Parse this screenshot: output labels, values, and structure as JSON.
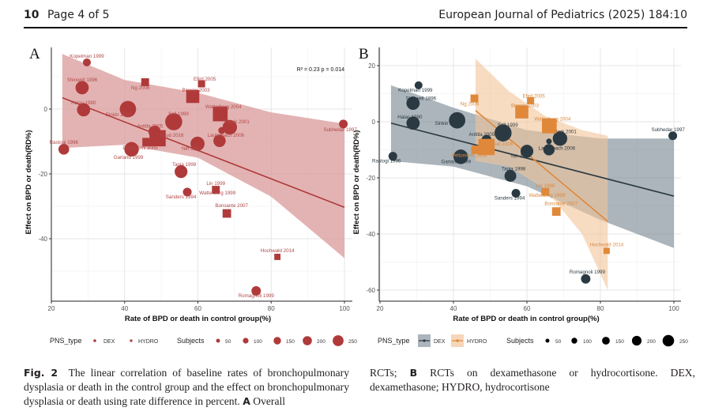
{
  "header": {
    "page_number": "10",
    "page_text": "Page 4 of 5",
    "journal": "European Journal of Pediatrics (2025) 184:10"
  },
  "caption": {
    "fig_label": "Fig. 2",
    "left_text": "The linear correlation of baseline rates of bronchopulmonary dysplasia or death in the control group and the effect on bronchopulmonary dysplasia or death using rate difference in percent.",
    "left_bold_tail": "A",
    "left_tail": "Overall",
    "right_start": "RCTs;",
    "right_bold": "B",
    "right_text": "RCTs on dexamethasone or hydrocortisone. DEX, dexamethasone; HYDRO, hydrocortisone"
  },
  "chart_data": [
    {
      "panel": "A",
      "type": "scatter",
      "title": "",
      "xlabel": "Rate of BPD or death in control group(%)",
      "ylabel": "Effect on BPD or death(RD%)",
      "xlim": [
        20,
        102
      ],
      "ylim": [
        -58,
        17
      ],
      "xticks": [
        20,
        40,
        60,
        80,
        100
      ],
      "yticks": [
        0,
        -20,
        -40
      ],
      "grid": true,
      "annotation": "R² = 0.23 p = 0.014",
      "color": "#b03a3a",
      "band_color": "#d99a9a",
      "regression": {
        "x": [
          23,
          100
        ],
        "y": [
          3.5,
          -30.3
        ],
        "ci_upper": [
          17,
          9,
          5,
          -1,
          -4.5
        ],
        "ci_lower": [
          -12,
          -11,
          -15,
          -27,
          -46
        ],
        "ci_x": [
          23,
          40,
          60,
          80,
          100
        ]
      },
      "legend": {
        "type_title": "PNS_type",
        "type_items": [
          "DEX",
          "HYDRO"
        ],
        "size_title": "Subjects",
        "size_items": [
          50,
          100,
          150,
          200,
          250
        ],
        "position": "bottom"
      },
      "points": [
        {
          "label": "Kopelman 1999",
          "x": 29.7,
          "y": 14.4,
          "type": "DEX",
          "n": 30
        },
        {
          "label": "Shinwell 1996",
          "x": 28.4,
          "y": 6.6,
          "type": "DEX",
          "n": 120
        },
        {
          "label": "Halac 1990",
          "x": 28.8,
          "y": -0.2,
          "type": "DEX",
          "n": 120
        },
        {
          "label": "Rastogi 1996",
          "x": 23.4,
          "y": -12.4,
          "type": "DEX",
          "n": 70
        },
        {
          "label": "Ng 2006",
          "x": 45.6,
          "y": 8.3,
          "type": "HYDRO",
          "n": 40
        },
        {
          "label": "Sinkin 2000",
          "x": 40.9,
          "y": 0.0,
          "type": "DEX",
          "n": 200
        },
        {
          "label": "Anttila 2005",
          "x": 48.2,
          "y": -7.0,
          "type": "DEX",
          "n": 100
        },
        {
          "label": "Baud 2016",
          "x": 49.0,
          "y": -9.0,
          "type": "HYDRO",
          "n": 250
        },
        {
          "label": "Peltoniemi 2005",
          "x": 46.0,
          "y": -10.2,
          "type": "HYDRO",
          "n": 50
        },
        {
          "label": "Garland 1999",
          "x": 41.9,
          "y": -12.4,
          "type": "DEX",
          "n": 150
        },
        {
          "label": "Watterberg 2004",
          "x": 66.1,
          "y": -1.5,
          "type": "HYDRO",
          "n": 200
        },
        {
          "label": "Biswas 2003",
          "x": 58.6,
          "y": 3.9,
          "type": "HYDRO",
          "n": 150
        },
        {
          "label": "Efird 2005",
          "x": 61.0,
          "y": 7.8,
          "type": "HYDRO",
          "n": 30
        },
        {
          "label": "Sell 1999",
          "x": 53.4,
          "y": -3.9,
          "type": "DEX",
          "n": 220
        },
        {
          "label": "Stark 2001",
          "x": 68.7,
          "y": -5.6,
          "type": "DEX",
          "n": 150
        },
        {
          "label": "",
          "x": 66.5,
          "y": -6.6,
          "type": "DEX",
          "n": 20
        },
        {
          "label": "Lauterbach 2006",
          "x": 65.9,
          "y": -9.8,
          "type": "DEX",
          "n": 100
        },
        {
          "label": "Yeh 1997",
          "x": 59.9,
          "y": -10.7,
          "type": "DEX",
          "n": 140
        },
        {
          "label": "Tapia 1998",
          "x": 55.4,
          "y": -19.3,
          "type": "DEX",
          "n": 110
        },
        {
          "label": "Sanders 1994",
          "x": 57.1,
          "y": -25.6,
          "type": "DEX",
          "n": 40
        },
        {
          "label": "Lin 1999",
          "x": 64.9,
          "y": -24.9,
          "type": "HYDRO",
          "n": 40
        },
        {
          "label": "Watterberg 1999",
          "x": 64.9,
          "y": -24.9,
          "type": "HYDRO",
          "n": 40,
          "label_only": true
        },
        {
          "label": "Bonsante 2007",
          "x": 67.9,
          "y": -32.2,
          "type": "HYDRO",
          "n": 50
        },
        {
          "label": "Hochwald 2014",
          "x": 81.7,
          "y": -45.6,
          "type": "HYDRO",
          "n": 20
        },
        {
          "label": "Romagnoli 1999",
          "x": 75.9,
          "y": -56.1,
          "type": "DEX",
          "n": 50
        },
        {
          "label": "Subhedar 1997",
          "x": 99.7,
          "y": -4.6,
          "type": "DEX",
          "n": 40
        }
      ]
    },
    {
      "panel": "B",
      "type": "scatter",
      "title": "",
      "xlabel": "Rate of BPD or death in control group(%)",
      "ylabel": "Effect on BPD or death(RD%)",
      "xlim": [
        20,
        102
      ],
      "ylim": [
        -63,
        24
      ],
      "xticks": [
        20,
        40,
        60,
        80,
        100
      ],
      "yticks": [
        20,
        0,
        -20,
        -40,
        -60
      ],
      "grid": true,
      "legend": {
        "type_title": "PNS_type",
        "type_items": [
          "DEX",
          "HYDRO"
        ],
        "size_title": "Subjects",
        "size_items": [
          50,
          100,
          150,
          200,
          250
        ],
        "position": "bottom"
      },
      "series": [
        {
          "name": "DEX",
          "color": "#2b3a42",
          "band_color": "#7e8e96",
          "regression": {
            "x": [
              23,
              100
            ],
            "y": [
              -0.5,
              -26.5
            ]
          },
          "ci_x": [
            23,
            40,
            60,
            80,
            100
          ],
          "ci_upper": [
            13,
            5,
            -3,
            -6,
            -6
          ],
          "ci_lower": [
            -14,
            -16,
            -23,
            -35,
            -45
          ],
          "points": [
            {
              "label": "Kopelman 1999",
              "x": 30.5,
              "y": 13.0,
              "n": 30
            },
            {
              "label": "Shinwell 1996",
              "x": 29.0,
              "y": 6.6,
              "n": 120
            },
            {
              "label": "Halac 1990",
              "x": 29.0,
              "y": -0.5,
              "n": 120
            },
            {
              "label": "Rastogi 1996",
              "x": 23.5,
              "y": -12.3,
              "n": 40
            },
            {
              "label": "Sinkin 2000",
              "x": 41.0,
              "y": 0.5,
              "n": 200
            },
            {
              "label": "Anttila 2005",
              "x": 49.0,
              "y": -6.5,
              "n": 60
            },
            {
              "label": "Garland 1999",
              "x": 42.0,
              "y": -12.5,
              "n": 150
            },
            {
              "label": "Sell 1999",
              "x": 53.5,
              "y": -4.0,
              "n": 220
            },
            {
              "label": "Stark 2001",
              "x": 69.0,
              "y": -6.0,
              "n": 150
            },
            {
              "label": "",
              "x": 66.0,
              "y": -7.0,
              "n": 10
            },
            {
              "label": "Lauterbach 2006",
              "x": 66.0,
              "y": -10.0,
              "n": 80
            },
            {
              "label": "Yeh 1997",
              "x": 60.0,
              "y": -10.5,
              "n": 110
            },
            {
              "label": "Tapia 1998",
              "x": 55.5,
              "y": -19.3,
              "n": 90
            },
            {
              "label": "Sanders 1994",
              "x": 57.0,
              "y": -25.5,
              "n": 40
            },
            {
              "label": "Romagnoli 1999",
              "x": 76.0,
              "y": -56.0,
              "n": 50
            },
            {
              "label": "Subhedar 1997",
              "x": 99.7,
              "y": -5.0,
              "n": 40
            }
          ]
        },
        {
          "name": "HYDRO",
          "color": "#e0883a",
          "band_color": "#f2c49a",
          "regression": {
            "x": [
              46,
              82
            ],
            "y": [
              4,
              -35.5
            ]
          },
          "ci_x": [
            46,
            55,
            65,
            75,
            82
          ],
          "ci_upper": [
            22.5,
            11,
            2,
            -3,
            -5
          ],
          "ci_lower": [
            -14,
            -16,
            -24,
            -40,
            -60
          ],
          "points": [
            {
              "label": "Ng 2006",
              "x": 45.7,
              "y": 8.3,
              "n": 40
            },
            {
              "label": "Baud 2016",
              "x": 49.0,
              "y": -9.0,
              "n": 250
            },
            {
              "label": "Peltoniemi 2005",
              "x": 46.0,
              "y": -10.0,
              "n": 50
            },
            {
              "label": "Efird 2005",
              "x": 61.0,
              "y": 7.5,
              "n": 30
            },
            {
              "label": "Biswas 2003",
              "x": 58.6,
              "y": 3.5,
              "n": 150
            },
            {
              "label": "Watterberg 2004",
              "x": 66.1,
              "y": -1.5,
              "n": 200
            },
            {
              "label": "Lin 1999",
              "x": 65.0,
              "y": -25.0,
              "n": 40
            },
            {
              "label": "Watterberg 1999",
              "x": 65.0,
              "y": -25.0,
              "n": 40,
              "label_only": true
            },
            {
              "label": "Bonsante 2007",
              "x": 68.0,
              "y": -32.0,
              "n": 50
            },
            {
              "label": "Hochwald 2014",
              "x": 81.7,
              "y": -46.0,
              "n": 20
            }
          ]
        }
      ]
    }
  ],
  "panels": {
    "A": {
      "letter": "A"
    },
    "B": {
      "letter": "B"
    }
  }
}
